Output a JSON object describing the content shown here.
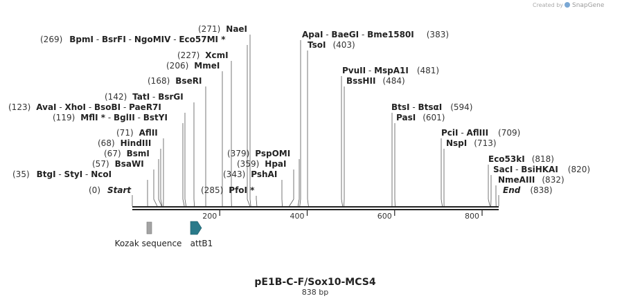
{
  "credit": {
    "text": "Created by",
    "app": "SnapGene",
    "logo_color": "#7aa7d4"
  },
  "map": {
    "length": 838,
    "title": "pE1B-C-F/Sox10-MCS4",
    "subtitle": "838 bp",
    "ticks": [
      200,
      400,
      600,
      800
    ],
    "backbone_color": "#222222"
  },
  "sites": [
    {
      "pos": "(0)",
      "parts": [
        "Start"
      ],
      "italic": true,
      "bp": 0
    },
    {
      "pos": "(35)",
      "parts": [
        "BtgI",
        "StyI",
        "NcoI"
      ],
      "bp": 35
    },
    {
      "pos": "(57)",
      "parts": [
        "BsaWI"
      ],
      "bp": 57
    },
    {
      "pos": "(67)",
      "parts": [
        "BsmI"
      ],
      "bp": 67
    },
    {
      "pos": "(68)",
      "parts": [
        "HindIII"
      ],
      "bp": 68
    },
    {
      "pos": "(71)",
      "parts": [
        "AflII"
      ],
      "bp": 71
    },
    {
      "pos": "(119)",
      "parts": [
        "MflI *",
        "BglII",
        "BstYI"
      ],
      "bp": 119
    },
    {
      "pos": "(123)",
      "parts": [
        "AvaI",
        "XhoI",
        "BsoBI",
        "PaeR7I"
      ],
      "bp": 123
    },
    {
      "pos": "(142)",
      "parts": [
        "TatI",
        "BsrGI"
      ],
      "bp": 142
    },
    {
      "pos": "(168)",
      "parts": [
        "BseRI"
      ],
      "bp": 168
    },
    {
      "pos": "(206)",
      "parts": [
        "MmeI"
      ],
      "bp": 206
    },
    {
      "pos": "(227)",
      "parts": [
        "XcmI"
      ],
      "bp": 227
    },
    {
      "pos": "(269)",
      "parts": [
        "BpmI",
        "BsrFI",
        "NgoMIV",
        "Eco57MI *"
      ],
      "bp": 269
    },
    {
      "pos": "(271)",
      "parts": [
        "NaeI"
      ],
      "bp": 271
    },
    {
      "pos": "(285)",
      "parts": [
        "PfoI *"
      ],
      "bp": 285
    },
    {
      "pos": "(343)",
      "parts": [
        "PshAI"
      ],
      "bp": 343
    },
    {
      "pos": "(359)",
      "parts": [
        "HpaI"
      ],
      "bp": 359
    },
    {
      "pos": "(379)",
      "parts": [
        "PspOMI"
      ],
      "bp": 379
    },
    {
      "pos": "(383)",
      "parts": [
        "ApaI",
        "BaeGI",
        "Bme1580I"
      ],
      "bp": 383
    },
    {
      "pos": "(403)",
      "parts": [
        "TsoI"
      ],
      "bp": 403
    },
    {
      "pos": "(481)",
      "parts": [
        "PvuII",
        "MspA1I"
      ],
      "bp": 481
    },
    {
      "pos": "(484)",
      "parts": [
        "BssHII"
      ],
      "bp": 484
    },
    {
      "pos": "(594)",
      "parts": [
        "BtsI",
        "BtsαI"
      ],
      "bp": 594
    },
    {
      "pos": "(601)",
      "parts": [
        "PasI"
      ],
      "bp": 601
    },
    {
      "pos": "(709)",
      "parts": [
        "PciI",
        "AflIII"
      ],
      "bp": 709
    },
    {
      "pos": "(713)",
      "parts": [
        "NspI"
      ],
      "bp": 713
    },
    {
      "pos": "(818)",
      "parts": [
        "Eco53kI"
      ],
      "bp": 818
    },
    {
      "pos": "(820)",
      "parts": [
        "SacI",
        "BsiHKAI"
      ],
      "bp": 820
    },
    {
      "pos": "(832)",
      "parts": [
        "NmeAIII"
      ],
      "bp": 832
    },
    {
      "pos": "(838)",
      "parts": [
        "End"
      ],
      "italic": true,
      "bp": 838
    }
  ],
  "features": [
    {
      "name": "Kozak sequence",
      "shape": "box",
      "color": "#a3a3a3",
      "start": 34,
      "end": 45
    },
    {
      "name": "attB1",
      "shape": "arrow",
      "color": "#2a7a8a",
      "start": 133,
      "end": 158
    }
  ]
}
